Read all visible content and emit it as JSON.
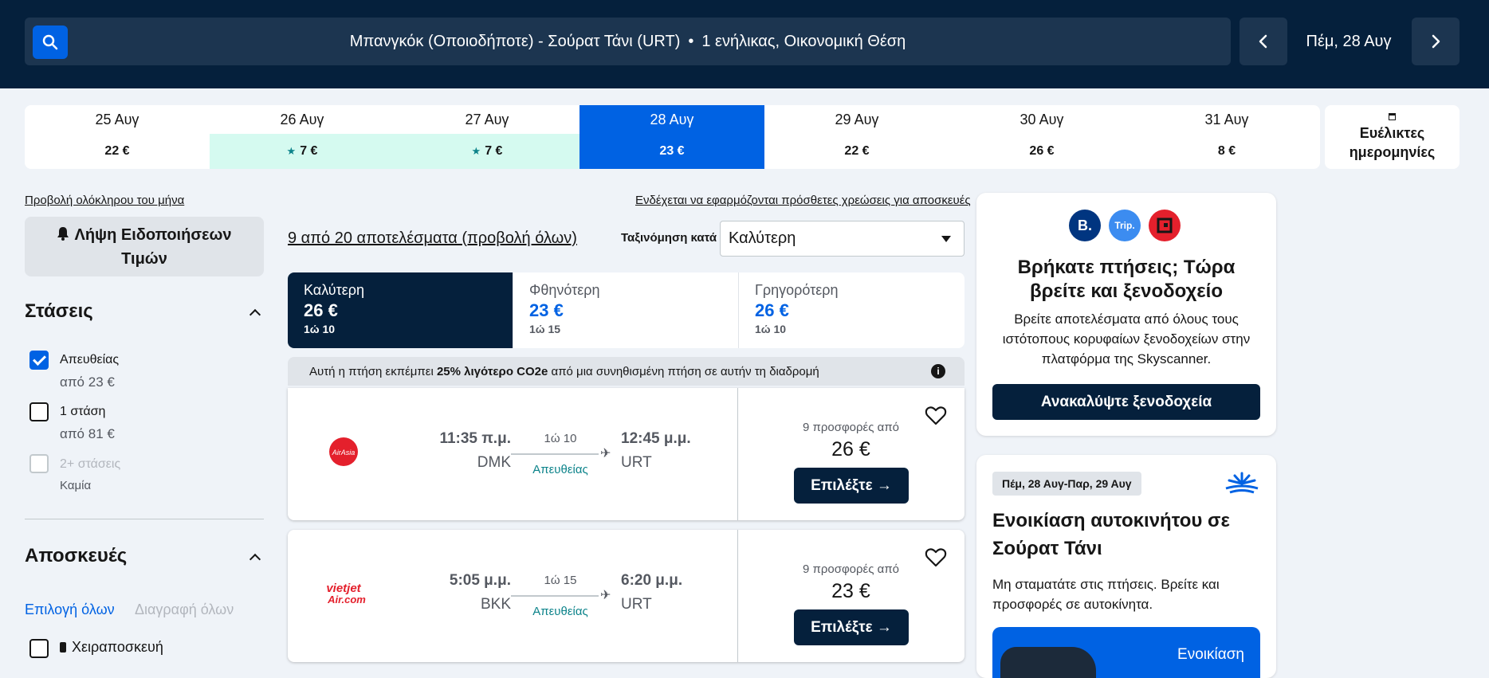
{
  "header": {
    "route": "Μπανγκόκ (Οποιοδήποτε) - Σούρατ Τάνι (URT)",
    "separator": "•",
    "travellers": "1 ενήλικας, Οικονομική Θέση",
    "current_date": "Πέμ, 28 Αυγ"
  },
  "date_strip": [
    {
      "date": "25 Αυγ",
      "price": "22 €",
      "cheapest": false,
      "selected": false
    },
    {
      "date": "26 Αυγ",
      "price": "7 €",
      "cheapest": true,
      "selected": false
    },
    {
      "date": "27 Αυγ",
      "price": "7 €",
      "cheapest": true,
      "selected": false
    },
    {
      "date": "28 Αυγ",
      "price": "23 €",
      "cheapest": false,
      "selected": true
    },
    {
      "date": "29 Αυγ",
      "price": "22 €",
      "cheapest": false,
      "selected": false
    },
    {
      "date": "30 Αυγ",
      "price": "26 €",
      "cheapest": false,
      "selected": false
    },
    {
      "date": "31 Αυγ",
      "price": "8 €",
      "cheapest": false,
      "selected": false
    }
  ],
  "flexible_dates": {
    "line1": "Ευέλικτες",
    "line2": "ημερομηνίες"
  },
  "sidebar": {
    "whole_month_link": "Προβολή ολόκληρου του μήνα",
    "price_alert_label": "Λήψη Ειδοποιήσεων Τιμών",
    "stops": {
      "title": "Στάσεις",
      "options": [
        {
          "label": "Απευθείας",
          "sub": "από 23 €",
          "checked": true,
          "disabled": false
        },
        {
          "label": "1 στάση",
          "sub": "από 81 €",
          "checked": false,
          "disabled": false
        },
        {
          "label": "2+ στάσεις",
          "sub": "Καμία",
          "checked": false,
          "disabled": true
        }
      ]
    },
    "baggage": {
      "title": "Αποσκευές",
      "select_all": "Επιλογή όλων",
      "clear_all": "Διαγραφή όλων",
      "carry_on": "Χειραποσκευή"
    }
  },
  "results": {
    "count_text": "9 από 20 αποτελέσματα (προβολή όλων)",
    "baggage_note": "Ενδέχεται να εφαρμόζονται πρόσθετες χρεώσεις για αποσκευές",
    "sort_label": "Ταξινόμηση κατά",
    "sort_value": "Καλύτερη",
    "tabs": [
      {
        "label": "Καλύτερη",
        "price": "26 €",
        "duration": "1ώ 10",
        "active": true
      },
      {
        "label": "Φθηνότερη",
        "price": "23 €",
        "duration": "1ώ 15",
        "active": false
      },
      {
        "label": "Γρηγορότερη",
        "price": "26 €",
        "duration": "1ώ 10",
        "active": false
      }
    ],
    "eco_pre": "Αυτή η πτήση εκπέμπει ",
    "eco_bold": "25% λιγότερο CO2e",
    "eco_post": " από μια συνηθισμένη πτήση σε αυτήν τη διαδρομή",
    "flights": [
      {
        "airline": "AirAsia",
        "dep_time": "11:35 π.μ.",
        "dep_airport": "DMK",
        "duration": "1ώ 10",
        "stops": "Απευθείας",
        "arr_time": "12:45 μ.μ.",
        "arr_airport": "URT",
        "offers": "9 προσφορές από",
        "price": "26 €",
        "select": "Επιλέξτε →"
      },
      {
        "airline": "VietJetAir.com",
        "dep_time": "5:05 μ.μ.",
        "dep_airport": "BKK",
        "duration": "1ώ 15",
        "stops": "Απευθείας",
        "arr_time": "6:20 μ.μ.",
        "arr_airport": "URT",
        "offers": "9 προσφορές από",
        "price": "23 €",
        "select": "Επιλέξτε →"
      }
    ]
  },
  "hotel_promo": {
    "logos": [
      "B.",
      "Trip."
    ],
    "title": "Βρήκατε πτήσεις; Τώρα βρείτε και ξενοδοχείο",
    "desc": "Βρείτε αποτελέσματα από όλους τους ιστότοπους κορυφαίων ξενοδοχείων στην πλατφόρμα της Skyscanner.",
    "button": "Ανακαλύψτε ξενοδοχεία"
  },
  "car_promo": {
    "dates": "Πέμ, 28 Αυγ-Παρ, 29 Αυγ",
    "title": "Ενοικίαση αυτοκινήτου σε Σούρατ Τάνι",
    "desc": "Μη σταματάτε στις πτήσεις. Βρείτε και προσφορές σε αυτοκίνητα.",
    "promo_text": "Ενοικίαση"
  }
}
